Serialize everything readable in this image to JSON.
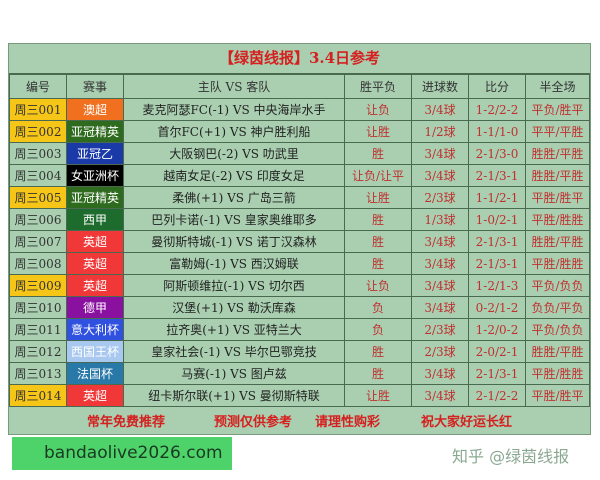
{
  "title": "【绿茵线报】3.4日参考",
  "headers": [
    "编号",
    "赛事",
    "主队 VS 客队",
    "胜平负",
    "进球数",
    "比分",
    "半全场"
  ],
  "rows": [
    {
      "id": "周三001",
      "league": "澳超",
      "league_color": "#f07020",
      "highlight": true,
      "match": "麦克阿瑟FC(-1) VS 中央海岸水手",
      "wdl": "让负",
      "goals": "3/4球",
      "score": "1-2/2-2",
      "htft": "平负/胜平"
    },
    {
      "id": "周三002",
      "league": "亚冠精英",
      "league_color": "#2e6b1e",
      "highlight": true,
      "match": "首尔FC(+1) VS 神户胜利船",
      "wdl": "让胜",
      "goals": "1/2球",
      "score": "1-1/1-0",
      "htft": "平平/平胜"
    },
    {
      "id": "周三003",
      "league": "亚冠乙",
      "league_color": "#1a3aa8",
      "highlight": false,
      "match": "大阪钢巴(-2) VS 叻武里",
      "wdl": "胜",
      "goals": "3/4球",
      "score": "2-1/3-0",
      "htft": "胜胜/平胜"
    },
    {
      "id": "周三004",
      "league": "女亚洲杯",
      "league_color": "#000000",
      "highlight": false,
      "match": "越南女足(-2) VS 印度女足",
      "wdl": "让负/让平",
      "goals": "3/4球",
      "score": "2-1/3-1",
      "htft": "胜胜/平胜"
    },
    {
      "id": "周三005",
      "league": "亚冠精英",
      "league_color": "#2e6b1e",
      "highlight": true,
      "match": "柔佛(+1) VS 广岛三箭",
      "wdl": "让胜",
      "goals": "2/3球",
      "score": "1-1/2-1",
      "htft": "平胜/胜平"
    },
    {
      "id": "周三006",
      "league": "西甲",
      "league_color": "#1e6b2e",
      "highlight": false,
      "match": "巴列卡诺(-1) VS 皇家奥维耶多",
      "wdl": "胜",
      "goals": "1/3球",
      "score": "1-0/2-1",
      "htft": "平胜/胜胜"
    },
    {
      "id": "周三007",
      "league": "英超",
      "league_color": "#f03838",
      "highlight": false,
      "match": "曼彻斯特城(-1) VS 诺丁汉森林",
      "wdl": "胜",
      "goals": "3/4球",
      "score": "2-1/3-1",
      "htft": "胜胜/平胜"
    },
    {
      "id": "周三008",
      "league": "英超",
      "league_color": "#f03838",
      "highlight": false,
      "match": "富勒姆(-1) VS 西汉姆联",
      "wdl": "胜",
      "goals": "3/4球",
      "score": "2-1/3-1",
      "htft": "平胜/胜胜"
    },
    {
      "id": "周三009",
      "league": "英超",
      "league_color": "#f03838",
      "highlight": true,
      "match": "阿斯顿维拉(-1) VS 切尔西",
      "wdl": "让负",
      "goals": "3/4球",
      "score": "1-2/1-3",
      "htft": "平负/负负"
    },
    {
      "id": "周三010",
      "league": "德甲",
      "league_color": "#8a10a0",
      "highlight": false,
      "match": "汉堡(+1) VS 勒沃库森",
      "wdl": "负",
      "goals": "3/4球",
      "score": "0-2/1-2",
      "htft": "负负/平负"
    },
    {
      "id": "周三011",
      "league": "意大利杯",
      "league_color": "#3050e0",
      "highlight": false,
      "match": "拉齐奥(+1) VS 亚特兰大",
      "wdl": "负",
      "goals": "2/3球",
      "score": "1-2/0-2",
      "htft": "平负/负负"
    },
    {
      "id": "周三012",
      "league": "西国王杯",
      "league_color": "#a8c8f0",
      "highlight": false,
      "match": "皇家社会(-1) VS 毕尔巴鄂竞技",
      "wdl": "胜",
      "goals": "2/3球",
      "score": "2-0/2-1",
      "htft": "胜胜/平胜"
    },
    {
      "id": "周三013",
      "league": "法国杯",
      "league_color": "#2878a8",
      "highlight": false,
      "match": "马赛(-1) VS 图卢兹",
      "wdl": "胜",
      "goals": "3/4球",
      "score": "2-1/3-1",
      "htft": "平胜/胜胜"
    },
    {
      "id": "周三014",
      "league": "英超",
      "league_color": "#f03838",
      "highlight": true,
      "match": "纽卡斯尔联(+1) VS 曼彻斯特联",
      "wdl": "让胜",
      "goals": "3/4球",
      "score": "2-1/2-2",
      "htft": "平胜/胜平"
    }
  ],
  "footer": [
    "常年免费推荐",
    "预测仅供参考",
    "请理性购彩",
    "祝大家好运长红"
  ],
  "watermark": "知乎 @绿茵线报",
  "site": "bandaolive2026.com"
}
